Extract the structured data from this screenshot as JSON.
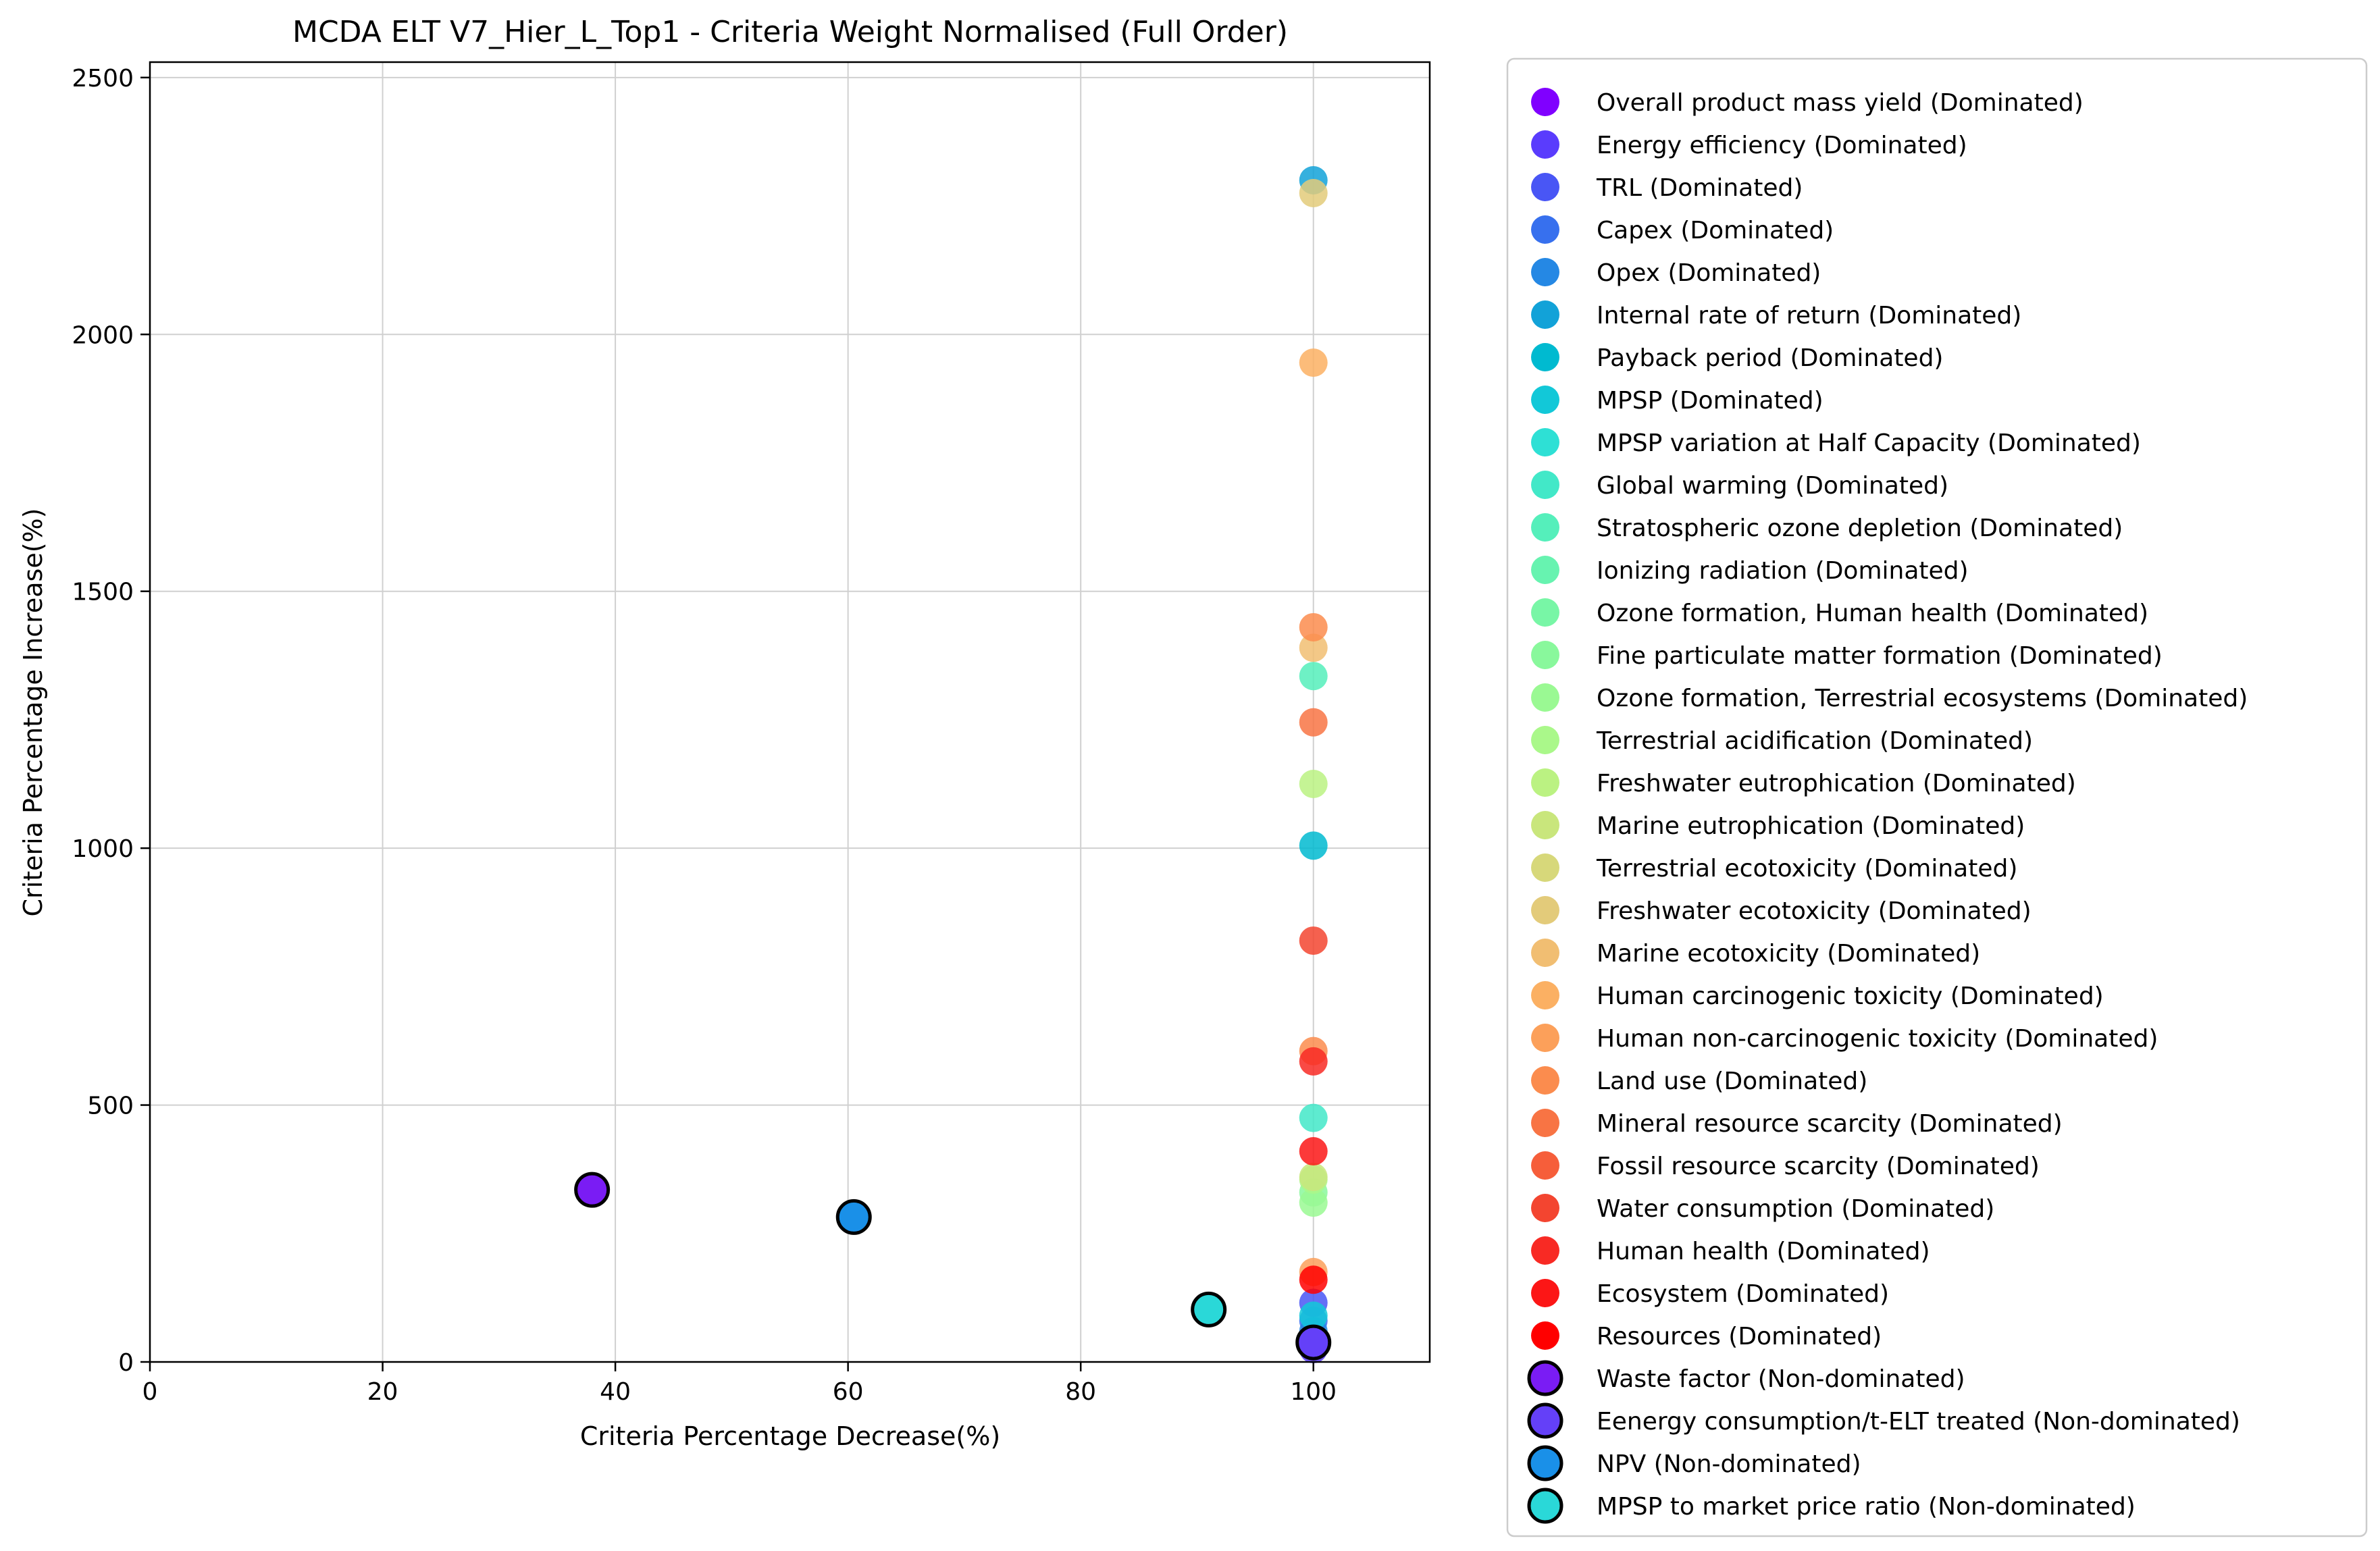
{
  "chart_data": {
    "type": "scatter",
    "title": "MCDA ELT V7_Hier_L_Top1 - Criteria Weight Normalised (Full Order)",
    "xlabel": "Criteria Percentage Decrease(%)",
    "ylabel": "Criteria Percentage Increase(%)",
    "xlim": [
      0,
      110
    ],
    "ylim": [
      0,
      2530
    ],
    "xticks": [
      0,
      20,
      40,
      60,
      80,
      100
    ],
    "yticks": [
      0,
      500,
      1000,
      1500,
      2000,
      2500
    ],
    "grid": true,
    "legend_position": "outside-right",
    "series": [
      {
        "name": "Overall product mass yield (Dominated)",
        "color": "#8000ff",
        "dominated": true,
        "points": []
      },
      {
        "name": "Energy efficiency (Dominated)",
        "color": "#5a3cfd",
        "dominated": true,
        "points": [
          [
            100,
            25
          ]
        ]
      },
      {
        "name": "TRL (Dominated)",
        "color": "#4956f5",
        "dominated": true,
        "points": [
          [
            100,
            115
          ]
        ]
      },
      {
        "name": "Capex (Dominated)",
        "color": "#3770ee",
        "dominated": true,
        "points": [
          [
            100,
            80
          ]
        ]
      },
      {
        "name": "Opex (Dominated)",
        "color": "#2588e4",
        "dominated": true,
        "points": [
          [
            100,
            60
          ]
        ]
      },
      {
        "name": "Internal rate of return (Dominated)",
        "color": "#12a2d8",
        "dominated": true,
        "points": [
          [
            100,
            2300
          ]
        ]
      },
      {
        "name": "Payback period (Dominated)",
        "color": "#00bad0",
        "dominated": true,
        "points": [
          [
            100,
            1005
          ]
        ]
      },
      {
        "name": "MPSP (Dominated)",
        "color": "#12c8d8",
        "dominated": true,
        "points": [
          [
            100,
            90
          ]
        ]
      },
      {
        "name": "MPSP variation at Half Capacity (Dominated)",
        "color": "#2ee0d5",
        "dominated": true,
        "points": []
      },
      {
        "name": "Global warming (Dominated)",
        "color": "#42e8c8",
        "dominated": true,
        "points": [
          [
            100,
            475
          ]
        ]
      },
      {
        "name": "Stratospheric ozone depletion (Dominated)",
        "color": "#55efbb",
        "dominated": true,
        "points": [
          [
            100,
            1335
          ]
        ]
      },
      {
        "name": "Ionizing radiation (Dominated)",
        "color": "#67f3b0",
        "dominated": true,
        "points": []
      },
      {
        "name": "Ozone formation, Human health (Dominated)",
        "color": "#78f6a6",
        "dominated": true,
        "points": []
      },
      {
        "name": "Fine particulate matter formation (Dominated)",
        "color": "#89f89c",
        "dominated": true,
        "points": [
          [
            100,
            330
          ]
        ]
      },
      {
        "name": "Ozone formation, Terrestrial ecosystems (Dominated)",
        "color": "#9af993",
        "dominated": true,
        "points": [
          [
            100,
            310
          ]
        ]
      },
      {
        "name": "Terrestrial acidification (Dominated)",
        "color": "#aaf88a",
        "dominated": true,
        "points": [
          [
            100,
            355
          ]
        ]
      },
      {
        "name": "Freshwater eutrophication (Dominated)",
        "color": "#bbf282",
        "dominated": true,
        "points": [
          [
            100,
            1125
          ]
        ]
      },
      {
        "name": "Marine eutrophication (Dominated)",
        "color": "#c9e67c",
        "dominated": true,
        "points": [
          [
            100,
            360
          ]
        ]
      },
      {
        "name": "Terrestrial ecotoxicity (Dominated)",
        "color": "#d7d87a",
        "dominated": true,
        "points": []
      },
      {
        "name": "Freshwater ecotoxicity (Dominated)",
        "color": "#e3cb7a",
        "dominated": true,
        "points": [
          [
            100,
            2275
          ]
        ]
      },
      {
        "name": "Marine ecotoxicity (Dominated)",
        "color": "#f1be72",
        "dominated": true,
        "points": [
          [
            100,
            1390
          ]
        ]
      },
      {
        "name": "Human carcinogenic toxicity (Dominated)",
        "color": "#fbb063",
        "dominated": true,
        "points": [
          [
            100,
            1945
          ]
        ]
      },
      {
        "name": "Human non-carcinogenic toxicity (Dominated)",
        "color": "#fca05a",
        "dominated": true,
        "points": [
          [
            100,
            175
          ]
        ]
      },
      {
        "name": "Land use (Dominated)",
        "color": "#fb8c4e",
        "dominated": true,
        "points": [
          [
            100,
            1430
          ],
          [
            100,
            605
          ]
        ]
      },
      {
        "name": "Mineral resource scarcity (Dominated)",
        "color": "#f87444",
        "dominated": true,
        "points": [
          [
            100,
            1245
          ]
        ]
      },
      {
        "name": "Fossil resource scarcity (Dominated)",
        "color": "#f65e3a",
        "dominated": true,
        "points": []
      },
      {
        "name": "Water consumption (Dominated)",
        "color": "#f34530",
        "dominated": true,
        "points": [
          [
            100,
            820
          ]
        ]
      },
      {
        "name": "Human health (Dominated)",
        "color": "#f82a24",
        "dominated": true,
        "points": [
          [
            100,
            585
          ]
        ]
      },
      {
        "name": "Ecosystem (Dominated)",
        "color": "#fc1616",
        "dominated": true,
        "points": [
          [
            100,
            410
          ]
        ]
      },
      {
        "name": "Resources (Dominated)",
        "color": "#ff0000",
        "dominated": true,
        "points": [
          [
            100,
            160
          ]
        ]
      },
      {
        "name": "Waste factor (Non-dominated)",
        "color": "#7a1cf4",
        "dominated": false,
        "points": [
          [
            38,
            335
          ]
        ]
      },
      {
        "name": "Eenergy consumption/t-ELT treated (Non-dominated)",
        "color": "#6440f8",
        "dominated": false,
        "points": [
          [
            100,
            38
          ]
        ]
      },
      {
        "name": "NPV (Non-dominated)",
        "color": "#1a90e8",
        "dominated": false,
        "points": [
          [
            60.5,
            282
          ]
        ]
      },
      {
        "name": "MPSP to market price ratio (Non-dominated)",
        "color": "#2ad8d8",
        "dominated": false,
        "points": [
          [
            91,
            102
          ]
        ]
      }
    ]
  }
}
